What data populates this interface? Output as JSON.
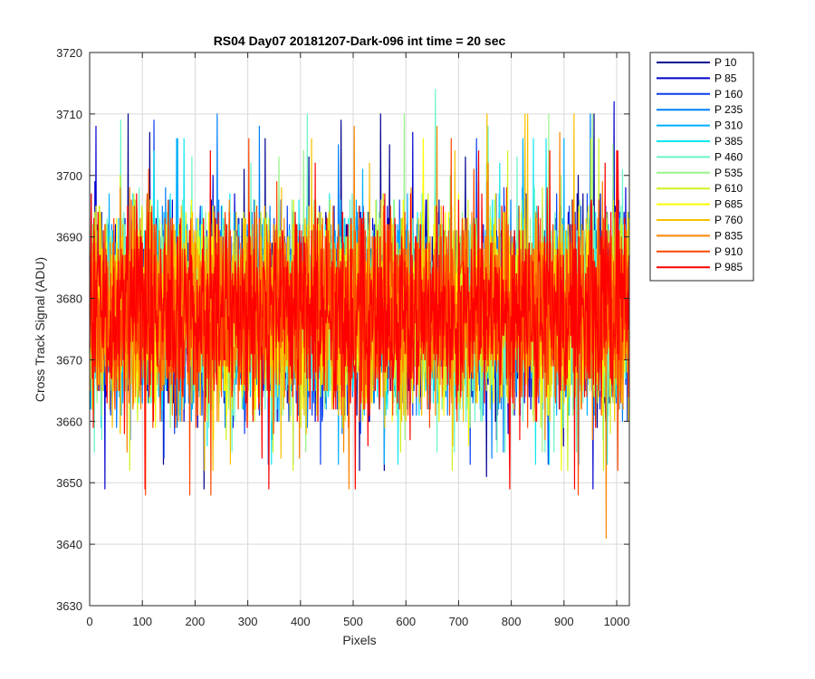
{
  "chart_data": {
    "type": "line",
    "title": "RS04 Day07 20181207-Dark-096 int time = 20 sec",
    "xlabel": "Pixels",
    "ylabel": "Cross Track Signal (ADU)",
    "xlim": [
      0,
      1024
    ],
    "ylim": [
      3630,
      3720
    ],
    "xticks": [
      0,
      100,
      200,
      300,
      400,
      500,
      600,
      700,
      800,
      900,
      1000
    ],
    "yticks": [
      3630,
      3640,
      3650,
      3660,
      3670,
      3680,
      3690,
      3700,
      3710,
      3720
    ],
    "grid": true,
    "legend_position": "outside-top-right",
    "series": [
      {
        "name": "P 10",
        "color": "#00008f",
        "mean": 3678,
        "range": [
          3649,
          3710
        ]
      },
      {
        "name": "P 85",
        "color": "#0000d0",
        "mean": 3678,
        "range": [
          3649,
          3715
        ]
      },
      {
        "name": "P 160",
        "color": "#0a3ff0",
        "mean": 3678,
        "range": [
          3653,
          3710
        ]
      },
      {
        "name": "P 235",
        "color": "#0080ff",
        "mean": 3678,
        "range": [
          3653,
          3710
        ]
      },
      {
        "name": "P 310",
        "color": "#00b0ff",
        "mean": 3678,
        "range": [
          3653,
          3706
        ]
      },
      {
        "name": "P 385",
        "color": "#10e8f0",
        "mean": 3678,
        "range": [
          3653,
          3706
        ]
      },
      {
        "name": "P 460",
        "color": "#6af5c8",
        "mean": 3678,
        "range": [
          3655,
          3719
        ]
      },
      {
        "name": "P 535",
        "color": "#98f58a",
        "mean": 3678,
        "range": [
          3655,
          3710
        ]
      },
      {
        "name": "P 610",
        "color": "#d0f020",
        "mean": 3678,
        "range": [
          3652,
          3706
        ]
      },
      {
        "name": "P 685",
        "color": "#fcfc00",
        "mean": 3678,
        "range": [
          3652,
          3706
        ]
      },
      {
        "name": "P 760",
        "color": "#f8c000",
        "mean": 3678,
        "range": [
          3652,
          3710
        ]
      },
      {
        "name": "P 835",
        "color": "#ff8400",
        "mean": 3678,
        "range": [
          3637,
          3708
        ]
      },
      {
        "name": "P 910",
        "color": "#ff4800",
        "mean": 3678,
        "range": [
          3648,
          3706
        ]
      },
      {
        "name": "P 985",
        "color": "#ff0000",
        "mean": 3678,
        "range": [
          3649,
          3704
        ]
      }
    ]
  }
}
